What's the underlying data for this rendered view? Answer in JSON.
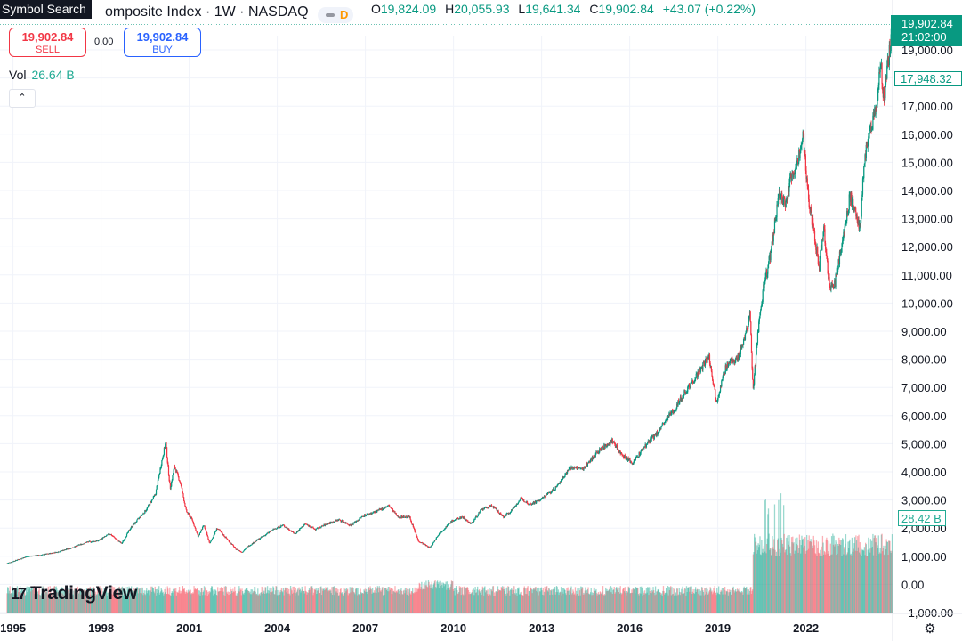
{
  "header": {
    "tooltip": "Symbol Search",
    "title": "omposite Index · 1W · NASDAQ",
    "badge": "D",
    "ohlc": [
      {
        "label": "O",
        "value": "19,824.09"
      },
      {
        "label": "H",
        "value": "20,055.93"
      },
      {
        "label": "L",
        "value": "19,641.34"
      },
      {
        "label": "C",
        "value": "19,902.84"
      }
    ],
    "change": "+43.07 (+0.22%)"
  },
  "trade": {
    "sell_price": "19,902.84",
    "sell_label": "SELL",
    "spread": "0.00",
    "buy_price": "19,902.84",
    "buy_label": "BUY"
  },
  "volume_legend": {
    "label": "Vol",
    "value": "26.64 B"
  },
  "collapse_icon": "chevron-up-icon",
  "logo": {
    "mark": "17",
    "text": "TradingView"
  },
  "price_scale": {
    "last_price": "19,902.84",
    "countdown": "21:02:00",
    "crosshair_price": "17,948.32",
    "volume_tag": "28.42 B"
  },
  "colors": {
    "up": "#089981",
    "down": "#f23645",
    "vol_up": "#22ab94",
    "vol_down": "#f7525f",
    "grid": "#f0f3fa"
  },
  "chart_data": {
    "type": "candlestick",
    "y_ticks": [
      "19,000.00",
      "18,000.00",
      "17,000.00",
      "16,000.00",
      "15,000.00",
      "14,000.00",
      "13,000.00",
      "12,000.00",
      "11,000.00",
      "10,000.00",
      "9,000.00",
      "8,000.00",
      "7,000.00",
      "6,000.00",
      "5,000.00",
      "4,000.00",
      "3,000.00",
      "2,000.00",
      "1,000.00",
      "0.00",
      "−1,000.00"
    ],
    "y_range": [
      -1000,
      19000
    ],
    "x_ticks": [
      "1995",
      "1998",
      "2001",
      "2004",
      "2007",
      "2010",
      "2013",
      "2016",
      "2019",
      "2022"
    ],
    "x_range": [
      1994.8,
      2024.95
    ],
    "price_series": [
      [
        1994.8,
        750
      ],
      [
        1995.5,
        1000
      ],
      [
        1996.0,
        1050
      ],
      [
        1996.5,
        1150
      ],
      [
        1997.0,
        1300
      ],
      [
        1997.5,
        1500
      ],
      [
        1997.9,
        1550
      ],
      [
        1998.3,
        1800
      ],
      [
        1998.7,
        1450
      ],
      [
        1999.0,
        2000
      ],
      [
        1999.5,
        2600
      ],
      [
        1999.85,
        3200
      ],
      [
        2000.05,
        4300
      ],
      [
        2000.2,
        5050
      ],
      [
        2000.35,
        3400
      ],
      [
        2000.5,
        4200
      ],
      [
        2000.7,
        3600
      ],
      [
        2000.9,
        2600
      ],
      [
        2001.1,
        2300
      ],
      [
        2001.3,
        1700
      ],
      [
        2001.5,
        2100
      ],
      [
        2001.7,
        1450
      ],
      [
        2001.95,
        2000
      ],
      [
        2002.3,
        1600
      ],
      [
        2002.6,
        1250
      ],
      [
        2002.8,
        1150
      ],
      [
        2003.0,
        1350
      ],
      [
        2003.5,
        1700
      ],
      [
        2003.95,
        2000
      ],
      [
        2004.2,
        2100
      ],
      [
        2004.6,
        1800
      ],
      [
        2004.95,
        2150
      ],
      [
        2005.3,
        1950
      ],
      [
        2005.7,
        2150
      ],
      [
        2006.1,
        2300
      ],
      [
        2006.5,
        2100
      ],
      [
        2006.95,
        2450
      ],
      [
        2007.4,
        2600
      ],
      [
        2007.8,
        2800
      ],
      [
        2008.1,
        2400
      ],
      [
        2008.5,
        2400
      ],
      [
        2008.8,
        1550
      ],
      [
        2009.2,
        1300
      ],
      [
        2009.5,
        1800
      ],
      [
        2009.95,
        2250
      ],
      [
        2010.3,
        2400
      ],
      [
        2010.6,
        2150
      ],
      [
        2010.95,
        2650
      ],
      [
        2011.3,
        2800
      ],
      [
        2011.7,
        2400
      ],
      [
        2011.95,
        2600
      ],
      [
        2012.3,
        3050
      ],
      [
        2012.6,
        2850
      ],
      [
        2012.95,
        3000
      ],
      [
        2013.5,
        3450
      ],
      [
        2013.95,
        4150
      ],
      [
        2014.4,
        4100
      ],
      [
        2014.95,
        4750
      ],
      [
        2015.4,
        5100
      ],
      [
        2015.7,
        4650
      ],
      [
        2016.1,
        4300
      ],
      [
        2016.5,
        4900
      ],
      [
        2016.95,
        5400
      ],
      [
        2017.5,
        6200
      ],
      [
        2017.95,
        6950
      ],
      [
        2018.2,
        7300
      ],
      [
        2018.7,
        8100
      ],
      [
        2018.95,
        6500
      ],
      [
        2019.3,
        7800
      ],
      [
        2019.7,
        8100
      ],
      [
        2019.98,
        9000
      ],
      [
        2020.1,
        9700
      ],
      [
        2020.2,
        6800
      ],
      [
        2020.35,
        8800
      ],
      [
        2020.55,
        10500
      ],
      [
        2020.75,
        11500
      ],
      [
        2020.95,
        12900
      ],
      [
        2021.1,
        13900
      ],
      [
        2021.3,
        13500
      ],
      [
        2021.5,
        14500
      ],
      [
        2021.75,
        15200
      ],
      [
        2021.9,
        16000
      ],
      [
        2022.05,
        14000
      ],
      [
        2022.2,
        13000
      ],
      [
        2022.45,
        11300
      ],
      [
        2022.6,
        12700
      ],
      [
        2022.8,
        10600
      ],
      [
        2022.95,
        10500
      ],
      [
        2023.2,
        12000
      ],
      [
        2023.5,
        13800
      ],
      [
        2023.7,
        13200
      ],
      [
        2023.85,
        12700
      ],
      [
        2023.98,
        15000
      ],
      [
        2024.2,
        16200
      ],
      [
        2024.4,
        17000
      ],
      [
        2024.55,
        18500
      ],
      [
        2024.65,
        17200
      ],
      [
        2024.78,
        18500
      ],
      [
        2024.88,
        19200
      ],
      [
        2024.95,
        19900
      ]
    ],
    "grid": true
  }
}
